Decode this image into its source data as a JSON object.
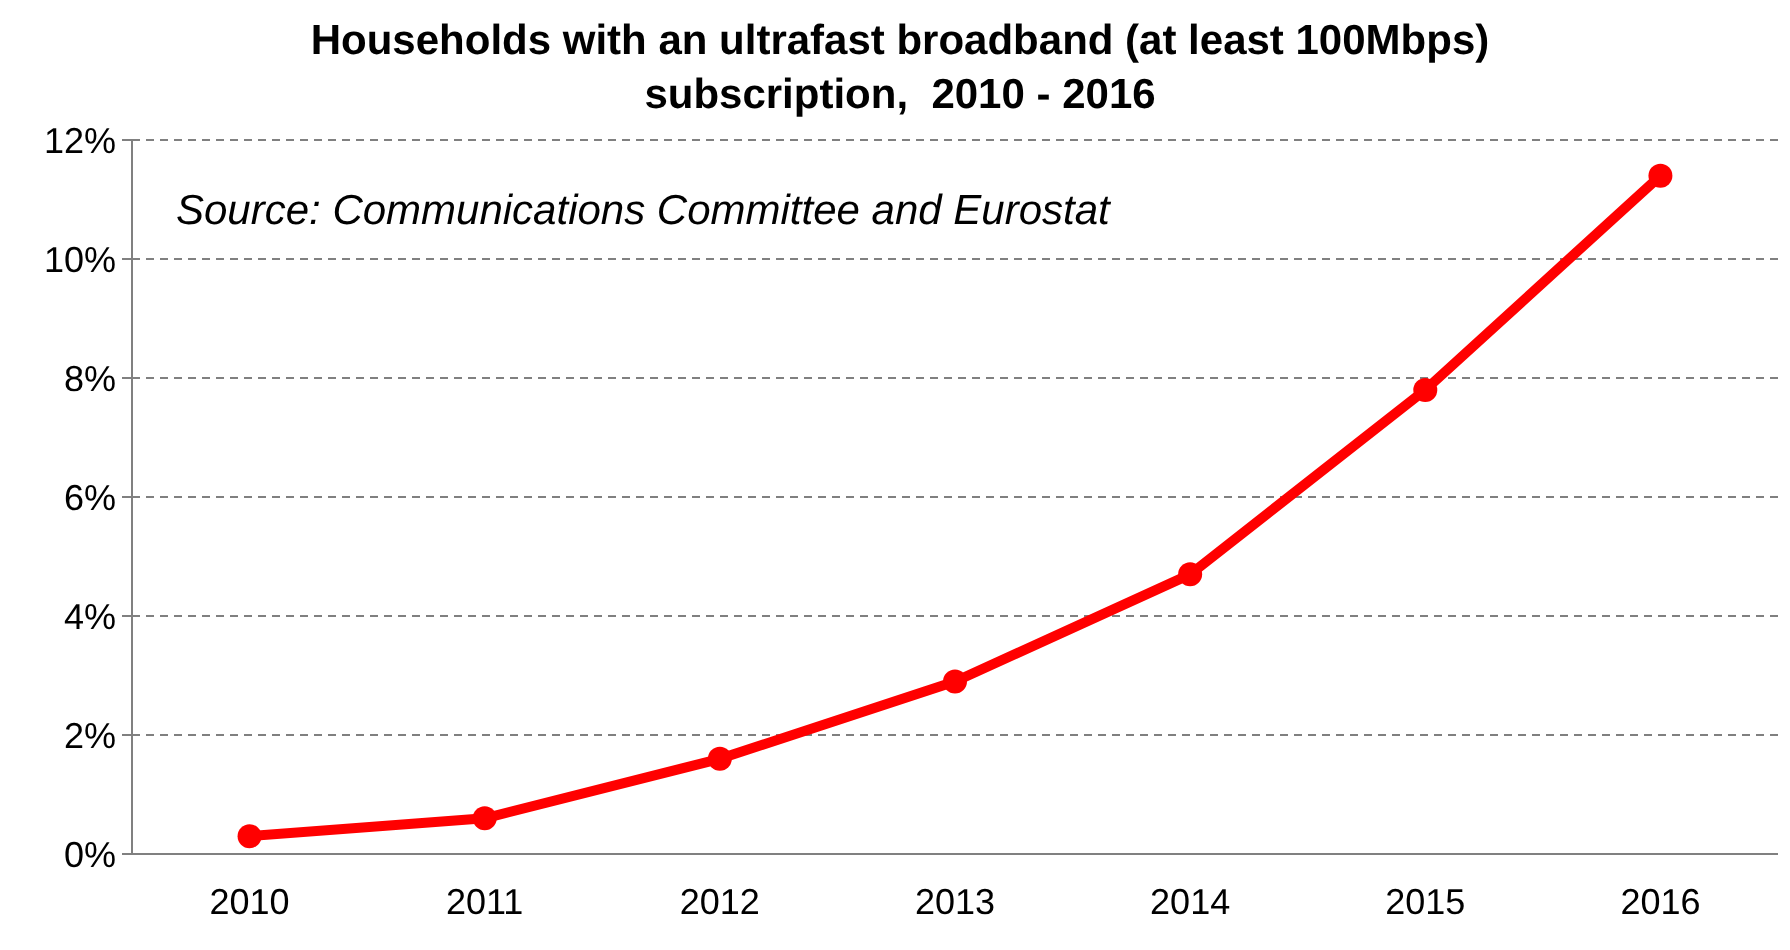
{
  "chart_data": {
    "type": "line",
    "title": "Households with an ultrafast broadband (at least 100Mbps)\nsubscription,  2010 - 2016",
    "categories": [
      "2010",
      "2011",
      "2012",
      "2013",
      "2014",
      "2015",
      "2016"
    ],
    "series": [
      {
        "color": "#ff0000",
        "values": [
          0.3,
          0.6,
          1.6,
          2.9,
          4.7,
          7.8,
          11.4
        ]
      }
    ],
    "ylim": [
      0,
      12
    ],
    "yticks": [
      {
        "value": 0,
        "label": "0%"
      },
      {
        "value": 2,
        "label": "2%"
      },
      {
        "value": 4,
        "label": "4%"
      },
      {
        "value": 6,
        "label": "6%"
      },
      {
        "value": 8,
        "label": "8%"
      },
      {
        "value": 10,
        "label": "10%"
      },
      {
        "value": 12,
        "label": "12%"
      }
    ],
    "grid": "y",
    "marker": "circle",
    "line_style": "solid",
    "annotations": [
      "Source: Communications Committee and Eurostat"
    ]
  }
}
